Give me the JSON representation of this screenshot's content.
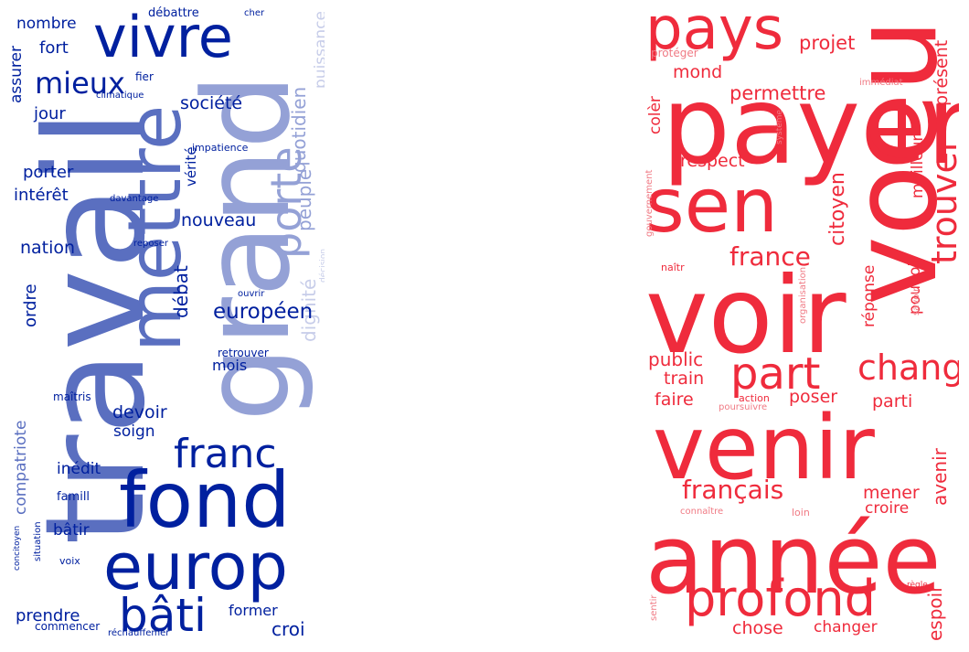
{
  "colors": {
    "blue_dark": "#00209f",
    "blue_mid": "#5a6fc0",
    "blue_light": "#94a1d6",
    "blue_pale": "#c7cde9",
    "red": "#ef2b3c",
    "red_light": "#f07a84"
  },
  "left_cloud": {
    "words": [
      "travail",
      "grand",
      "mettre",
      "vivre",
      "fond",
      "europ",
      "bâti",
      "franc",
      "porte",
      "mieux",
      "croi",
      "société",
      "quotidien",
      "puissance",
      "peuple",
      "dignité",
      "européen",
      "nouveau",
      "débat",
      "devoir",
      "nation",
      "prendre",
      "compatriote",
      "nombre",
      "fort",
      "jour",
      "assurer",
      "porter",
      "intérêt",
      "ordre",
      "vérité",
      "mois",
      "soign",
      "former",
      "inédit",
      "bâtir",
      "famill",
      "maîtris",
      "voix",
      "situation",
      "concitoyen",
      "commencer",
      "réchauffemer",
      "retrouver",
      "ouvrir",
      "décision",
      "reposer",
      "davantage",
      "impatience",
      "climatique",
      "fier",
      "débattre",
      "cher"
    ]
  },
  "right_cloud": {
    "words": [
      "voir",
      "payer",
      "venir",
      "année",
      "voeu",
      "sen",
      "pays",
      "profond",
      "part",
      "chang",
      "trouver",
      "france",
      "français",
      "projet",
      "permettre",
      "mond",
      "respect",
      "citoyen",
      "présent",
      "meilleur",
      "réponse",
      "public",
      "train",
      "faire",
      "poser",
      "parti",
      "pouvoir",
      "mener",
      "croire",
      "avenir",
      "espoir",
      "chose",
      "changer",
      "colèr",
      "protéger",
      "immédiat",
      "système",
      "gouvernement",
      "naîtr",
      "organisation",
      "savoir",
      "action",
      "poursuivre",
      "connaître",
      "loin",
      "règle",
      "sentir"
    ]
  }
}
